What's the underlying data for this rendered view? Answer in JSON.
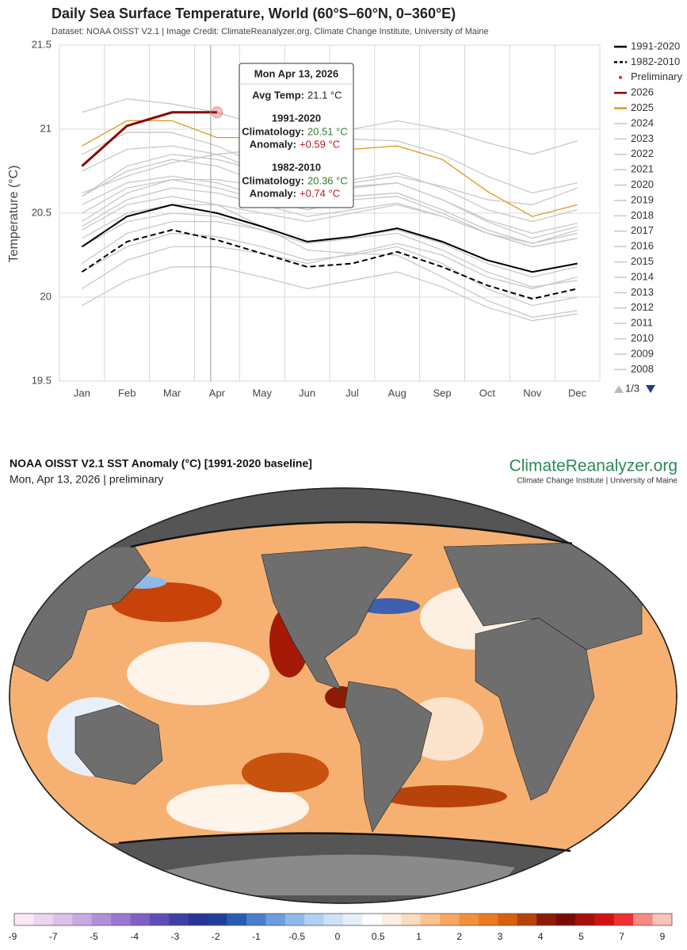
{
  "chart_data": [
    {
      "type": "line",
      "title": "Daily Sea Surface Temperature, World (60°S–60°N, 0–360°E)",
      "subtitle": "Dataset: NOAA OISST V2.1 | Image Credit: ClimateReanalyzer.org, Climate Change Institute, University of Maine",
      "y_label": "Temperature (°C)",
      "categories": [
        "Jan",
        "Feb",
        "Mar",
        "Apr",
        "May",
        "Jun",
        "Jul",
        "Aug",
        "Sep",
        "Oct",
        "Nov",
        "Dec"
      ],
      "ylim": [
        19.5,
        21.5
      ],
      "yticks": [
        19.5,
        20,
        20.5,
        21,
        21.5
      ],
      "grid": true,
      "legend": "right",
      "legend_page": "1/3",
      "series": [
        {
          "name": "1991-2020",
          "color": "#000000",
          "style": "solid",
          "values": [
            20.3,
            20.48,
            20.55,
            20.5,
            20.42,
            20.33,
            20.36,
            20.41,
            20.33,
            20.22,
            20.15,
            20.2
          ]
        },
        {
          "name": "1982-2010",
          "color": "#000000",
          "style": "dashed",
          "values": [
            20.15,
            20.33,
            20.4,
            20.34,
            20.26,
            20.18,
            20.2,
            20.27,
            20.18,
            20.07,
            19.99,
            20.05
          ]
        },
        {
          "name": "Preliminary",
          "color": "#d32f2f",
          "style": "marker",
          "values": [
            null,
            null,
            null,
            21.1,
            null,
            null,
            null,
            null,
            null,
            null,
            null,
            null
          ]
        },
        {
          "name": "2026",
          "color": "#8b0000",
          "style": "solid",
          "values": [
            20.78,
            21.02,
            21.1,
            21.1,
            null,
            null,
            null,
            null,
            null,
            null,
            null,
            null
          ]
        },
        {
          "name": "2025",
          "color": "#d99a1e",
          "style": "solid",
          "values": [
            20.9,
            21.05,
            21.05,
            20.95,
            20.95,
            20.92,
            20.88,
            20.9,
            20.82,
            20.63,
            20.48,
            20.55
          ]
        },
        {
          "name": "2024",
          "color": "#c8c8c8",
          "style": "solid",
          "values": [
            21.1,
            21.18,
            21.15,
            21.1,
            21.02,
            20.95,
            20.94,
            20.93,
            20.85,
            20.72,
            20.62,
            20.68
          ]
        },
        {
          "name": "2023",
          "color": "#c8c8c8",
          "style": "solid",
          "values": [
            20.62,
            20.72,
            20.8,
            20.85,
            20.88,
            20.9,
            21.0,
            21.05,
            21.0,
            20.92,
            20.85,
            20.93
          ]
        },
        {
          "name": "2022",
          "color": "#c8c8c8",
          "style": "solid",
          "values": [
            20.55,
            20.68,
            20.72,
            20.68,
            20.6,
            20.55,
            20.6,
            20.62,
            20.52,
            20.4,
            20.32,
            20.38
          ]
        },
        {
          "name": "2021",
          "color": "#c8c8c8",
          "style": "solid",
          "values": [
            20.5,
            20.65,
            20.7,
            20.65,
            20.58,
            20.52,
            20.58,
            20.6,
            20.5,
            20.38,
            20.3,
            20.35
          ]
        },
        {
          "name": "2020",
          "color": "#c8c8c8",
          "style": "solid",
          "values": [
            20.75,
            20.88,
            20.9,
            20.85,
            20.75,
            20.65,
            20.65,
            20.68,
            20.58,
            20.45,
            20.35,
            20.42
          ]
        },
        {
          "name": "2019",
          "color": "#c8c8c8",
          "style": "solid",
          "values": [
            20.6,
            20.78,
            20.85,
            20.82,
            20.75,
            20.68,
            20.7,
            20.74,
            20.65,
            20.52,
            20.45,
            20.52
          ]
        },
        {
          "name": "2018",
          "color": "#c8c8c8",
          "style": "solid",
          "values": [
            20.42,
            20.58,
            20.65,
            20.62,
            20.55,
            20.48,
            20.52,
            20.56,
            20.48,
            20.38,
            20.32,
            20.4
          ]
        },
        {
          "name": "2017",
          "color": "#c8c8c8",
          "style": "solid",
          "values": [
            20.6,
            20.75,
            20.82,
            20.78,
            20.68,
            20.58,
            20.6,
            20.62,
            20.52,
            20.4,
            20.32,
            20.38
          ]
        },
        {
          "name": "2016",
          "color": "#c8c8c8",
          "style": "solid",
          "values": [
            20.85,
            20.98,
            20.98,
            20.9,
            20.78,
            20.66,
            20.66,
            20.68,
            20.58,
            20.46,
            20.38,
            20.44
          ]
        },
        {
          "name": "2015",
          "color": "#c8c8c8",
          "style": "solid",
          "values": [
            20.45,
            20.62,
            20.7,
            20.7,
            20.66,
            20.62,
            20.68,
            20.72,
            20.66,
            20.58,
            20.55,
            20.65
          ]
        },
        {
          "name": "2014",
          "color": "#c8c8c8",
          "style": "solid",
          "values": [
            20.35,
            20.5,
            20.55,
            20.55,
            20.5,
            20.45,
            20.5,
            20.55,
            20.48,
            20.38,
            20.3,
            20.35
          ]
        },
        {
          "name": "2013",
          "color": "#c8c8c8",
          "style": "solid",
          "values": [
            20.3,
            20.45,
            20.5,
            20.48,
            20.4,
            20.32,
            20.36,
            20.4,
            20.32,
            20.2,
            20.12,
            20.18
          ]
        },
        {
          "name": "2012",
          "color": "#c8c8c8",
          "style": "solid",
          "values": [
            20.2,
            20.38,
            20.45,
            20.45,
            20.4,
            20.32,
            20.35,
            20.38,
            20.28,
            20.15,
            20.06,
            20.1
          ]
        },
        {
          "name": "2011",
          "color": "#c8c8c8",
          "style": "solid",
          "values": [
            20.15,
            20.3,
            20.38,
            20.36,
            20.3,
            20.22,
            20.25,
            20.3,
            20.2,
            20.05,
            19.95,
            20.0
          ]
        },
        {
          "name": "2010",
          "color": "#c8c8c8",
          "style": "solid",
          "values": [
            20.4,
            20.55,
            20.6,
            20.55,
            20.42,
            20.28,
            20.26,
            20.25,
            20.12,
            19.98,
            19.88,
            19.92
          ]
        },
        {
          "name": "2009",
          "color": "#c8c8c8",
          "style": "solid",
          "values": [
            20.05,
            20.22,
            20.3,
            20.3,
            20.26,
            20.2,
            20.26,
            20.32,
            20.25,
            20.12,
            20.05,
            20.12
          ]
        },
        {
          "name": "2008",
          "color": "#c8c8c8",
          "style": "solid",
          "values": [
            19.95,
            20.1,
            20.18,
            20.18,
            20.12,
            20.05,
            20.1,
            20.15,
            20.06,
            19.94,
            19.86,
            19.9
          ]
        }
      ],
      "tooltip": {
        "date": "Mon Apr 13, 2026",
        "avg_label": "Avg Temp:",
        "avg_value": "21.1 °C",
        "sections": [
          {
            "name": "1991-2020",
            "clim_label": "Climatology:",
            "clim_value": "20.51 °C",
            "anom_label": "Anomaly:",
            "anom_value": "+0.59 °C"
          },
          {
            "name": "1982-2010",
            "clim_label": "Climatology:",
            "clim_value": "20.36 °C",
            "anom_label": "Anomaly:",
            "anom_value": "+0.74 °C"
          }
        ]
      }
    },
    {
      "type": "map",
      "title": "NOAA OISST V2.1 SST Anomaly (°C) [1991-2020 baseline]",
      "subtitle": "Mon, Apr 13, 2026 | preliminary",
      "brand": "ClimateReanalyzer.org",
      "brand_subtitle": "Climate Change Institute | University of Maine",
      "colorbar": {
        "ticks": [
          -9,
          -7,
          -5,
          -4,
          -3,
          -2,
          -1,
          -0.5,
          0,
          0.5,
          1,
          2,
          3,
          4,
          5,
          7,
          9
        ],
        "colors": [
          "#fbe8f3",
          "#ecd5ef",
          "#dcc1ea",
          "#c9a9e2",
          "#b48fd9",
          "#9d76cf",
          "#8060c4",
          "#5f4db6",
          "#3f3fa8",
          "#28349a",
          "#1f3f9c",
          "#2a5cb5",
          "#4a7dcc",
          "#6c9ddc",
          "#8fb9e8",
          "#b0d1f0",
          "#cde2f6",
          "#e4eff9",
          "#ffffff",
          "#fdf0e2",
          "#fbdcbc",
          "#f9c48f",
          "#f6a862",
          "#f28f3c",
          "#ec7a1f",
          "#d9600f",
          "#b8430a",
          "#8c1c06",
          "#7a0a05",
          "#a6100a",
          "#d21111",
          "#ee3030",
          "#f48a82",
          "#f9c2bb"
        ]
      }
    }
  ]
}
